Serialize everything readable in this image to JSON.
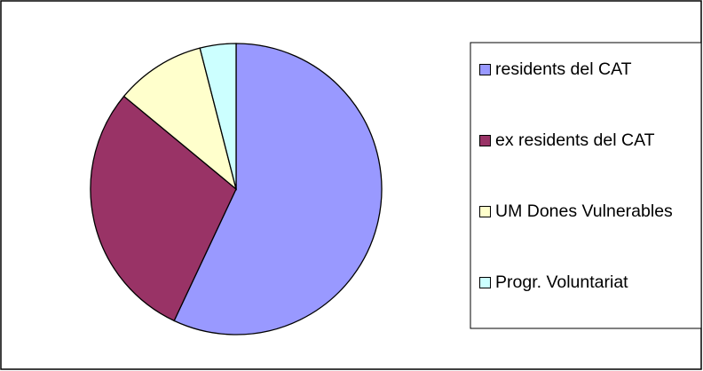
{
  "chart_data": {
    "type": "pie",
    "categories": [
      "residents del CAT",
      "ex residents del CAT",
      "UM Dones Vulnerables",
      "Progr. Voluntariat"
    ],
    "values": [
      57,
      29,
      10,
      4
    ],
    "colors": [
      "#9999ff",
      "#993366",
      "#ffffcc",
      "#ccffff"
    ],
    "legend": "right"
  }
}
